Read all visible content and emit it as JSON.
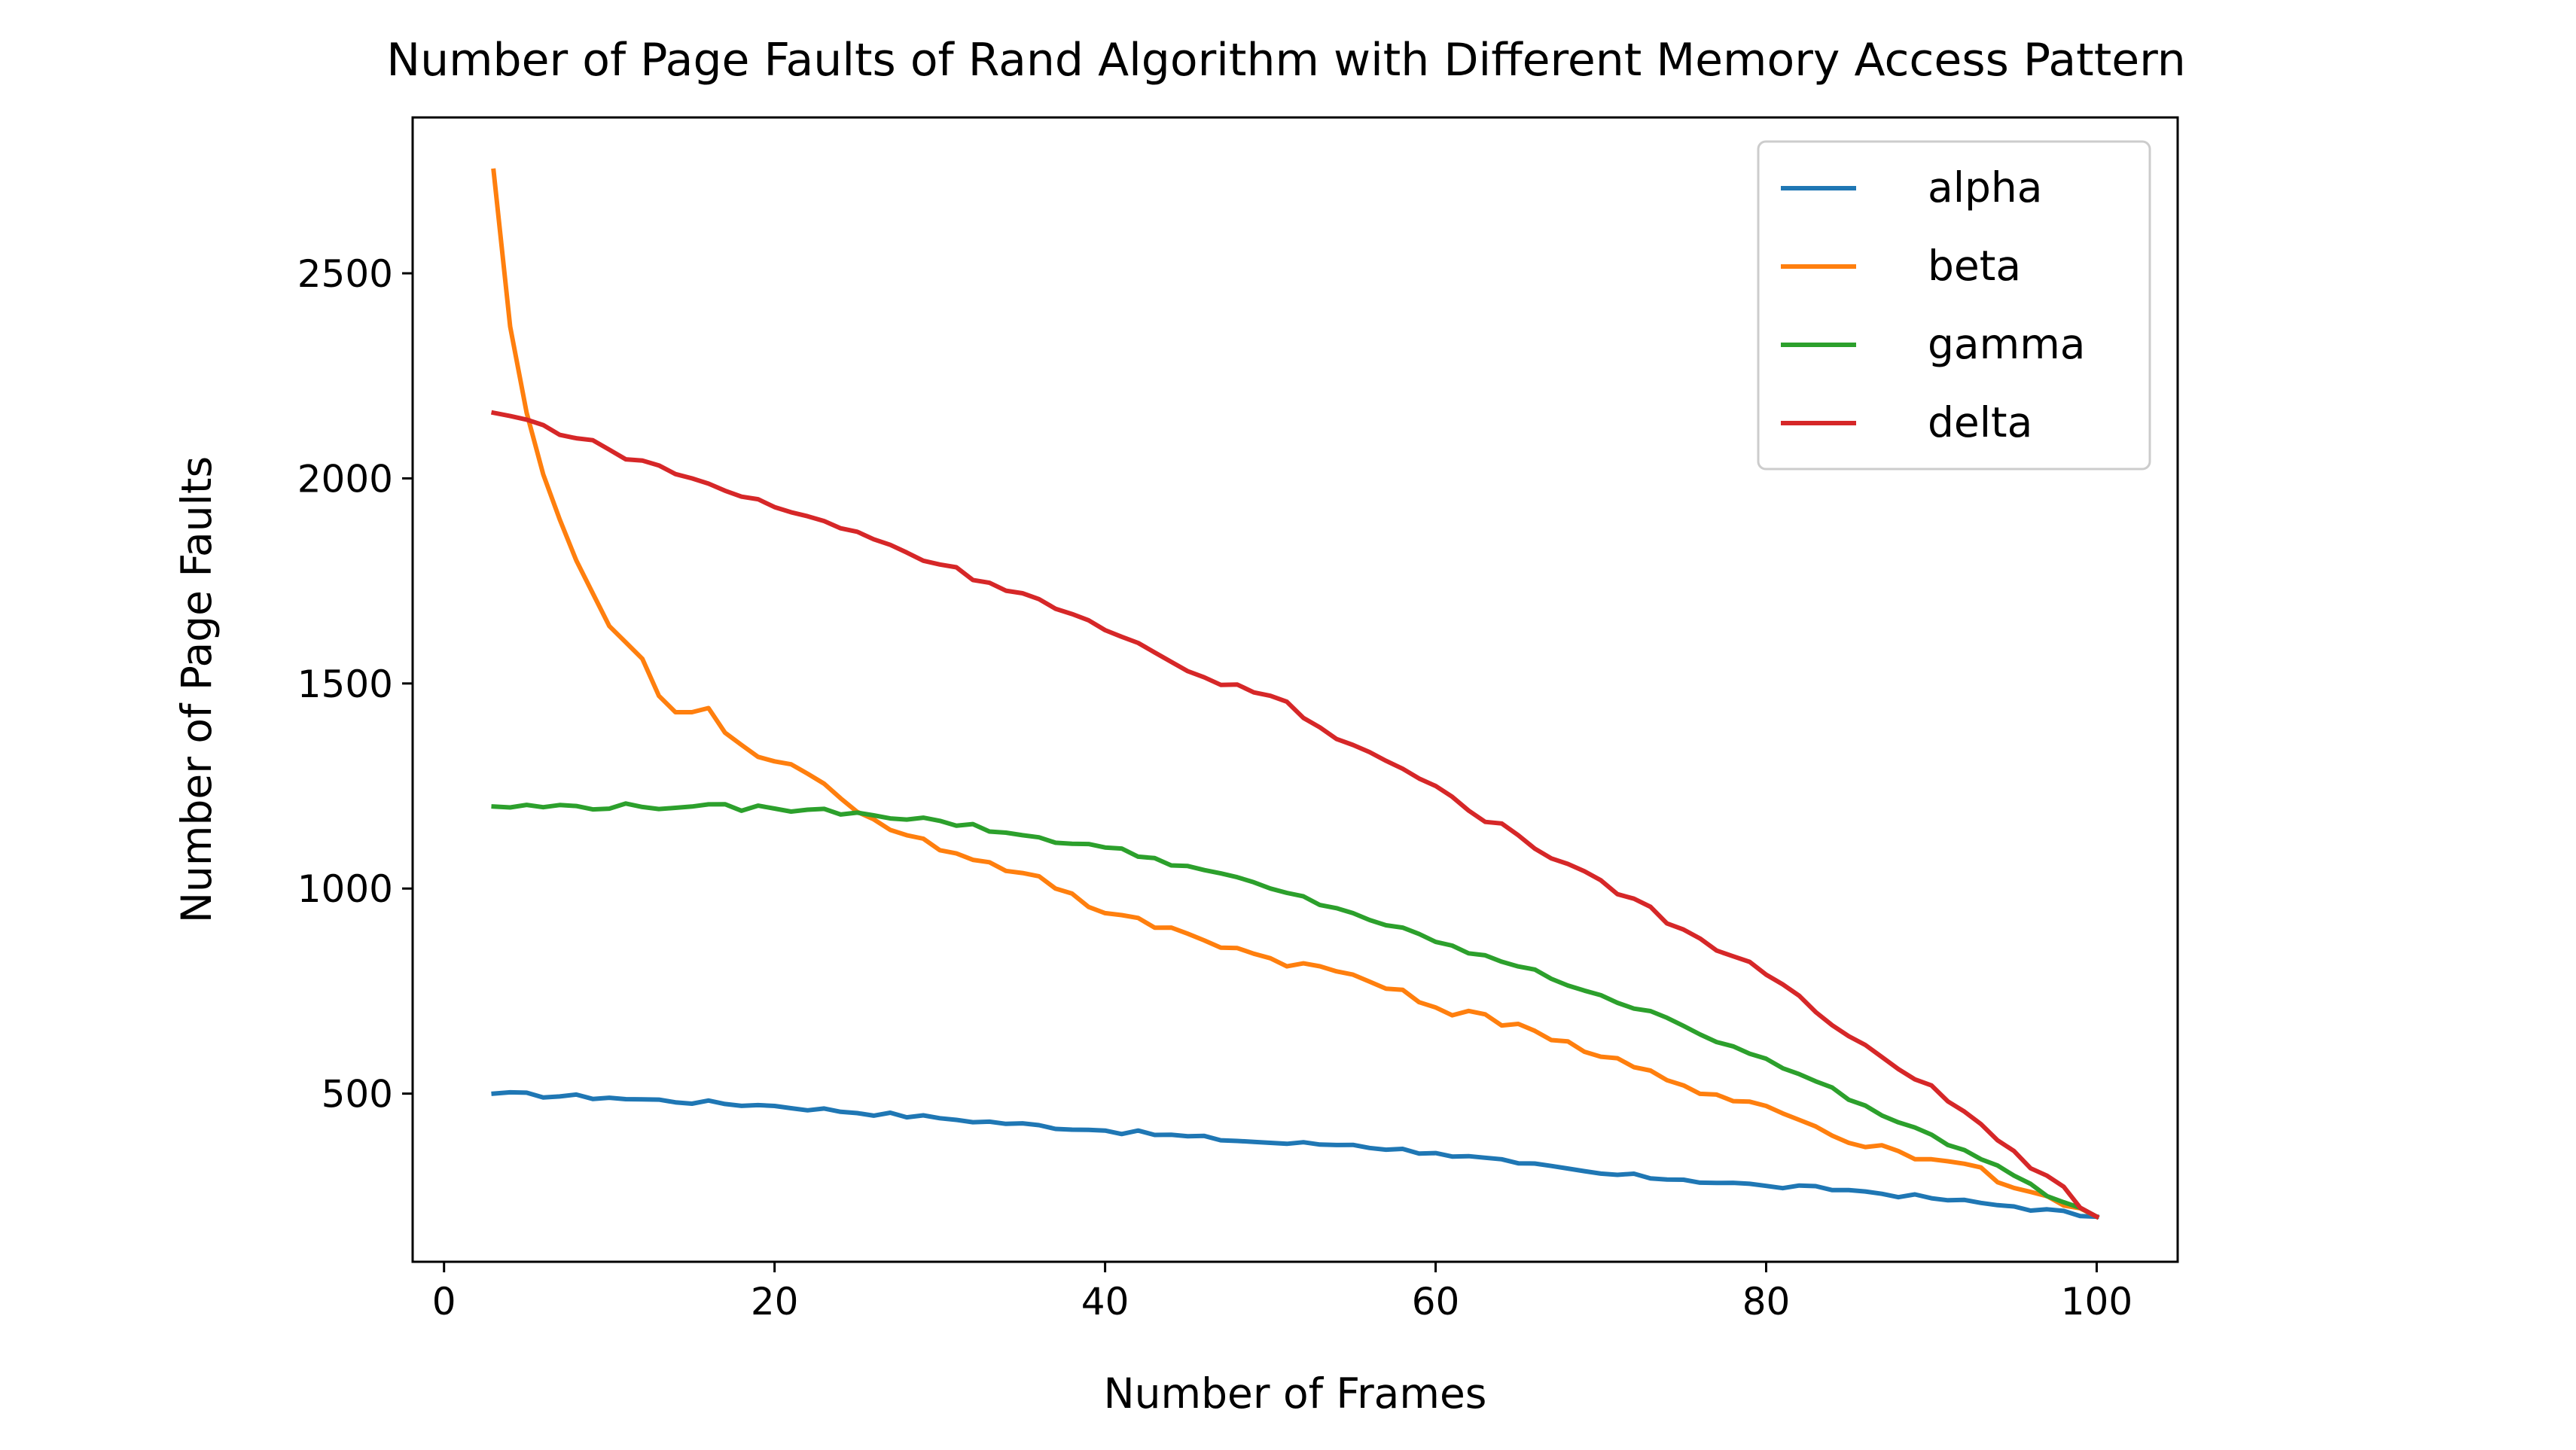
{
  "chart_data": {
    "type": "line",
    "title": "Number of Page Faults of Rand Algorithm with Different Memory Access Pattern",
    "xlabel": "Number of Frames",
    "ylabel": "Number of Page Faults",
    "xlim": [
      -1.9,
      104.9
    ],
    "ylim": [
      90,
      2880
    ],
    "xticks": [
      0,
      20,
      40,
      60,
      80,
      100
    ],
    "yticks": [
      500,
      1000,
      1500,
      2000,
      2500
    ],
    "legend_position": "top-right",
    "x_start": 3,
    "x_step": 1,
    "series": [
      {
        "name": "alpha",
        "color": "#1f77b4",
        "keypoints": [
          [
            3,
            500
          ],
          [
            10,
            490
          ],
          [
            20,
            470
          ],
          [
            30,
            440
          ],
          [
            40,
            410
          ],
          [
            50,
            380
          ],
          [
            55,
            375
          ],
          [
            60,
            355
          ],
          [
            65,
            330
          ],
          [
            70,
            305
          ],
          [
            75,
            290
          ],
          [
            80,
            275
          ],
          [
            85,
            265
          ],
          [
            90,
            245
          ],
          [
            95,
            225
          ],
          [
            100,
            200
          ]
        ],
        "noise": 6
      },
      {
        "name": "beta",
        "color": "#ff7f0e",
        "keypoints": [
          [
            3,
            2750
          ],
          [
            4,
            2370
          ],
          [
            5,
            2160
          ],
          [
            6,
            2010
          ],
          [
            7,
            1900
          ],
          [
            8,
            1800
          ],
          [
            9,
            1720
          ],
          [
            10,
            1640
          ],
          [
            11,
            1600
          ],
          [
            12,
            1560
          ],
          [
            13,
            1470
          ],
          [
            14,
            1430
          ],
          [
            15,
            1430
          ],
          [
            16,
            1440
          ],
          [
            17,
            1380
          ],
          [
            18,
            1350
          ],
          [
            20,
            1310
          ],
          [
            22,
            1280
          ],
          [
            24,
            1220
          ],
          [
            28,
            1130
          ],
          [
            32,
            1070
          ],
          [
            36,
            1030
          ],
          [
            40,
            940
          ],
          [
            45,
            890
          ],
          [
            50,
            830
          ],
          [
            55,
            790
          ],
          [
            60,
            710
          ],
          [
            65,
            670
          ],
          [
            70,
            590
          ],
          [
            75,
            520
          ],
          [
            80,
            470
          ],
          [
            83,
            420
          ],
          [
            85,
            380
          ],
          [
            88,
            360
          ],
          [
            90,
            340
          ],
          [
            93,
            320
          ],
          [
            95,
            270
          ],
          [
            97,
            250
          ],
          [
            100,
            200
          ]
        ],
        "noise": 12
      },
      {
        "name": "gamma",
        "color": "#2ca02c",
        "keypoints": [
          [
            3,
            1200
          ],
          [
            15,
            1200
          ],
          [
            20,
            1195
          ],
          [
            25,
            1185
          ],
          [
            30,
            1165
          ],
          [
            35,
            1130
          ],
          [
            40,
            1100
          ],
          [
            45,
            1055
          ],
          [
            50,
            1000
          ],
          [
            55,
            940
          ],
          [
            60,
            870
          ],
          [
            65,
            810
          ],
          [
            70,
            740
          ],
          [
            75,
            665
          ],
          [
            80,
            585
          ],
          [
            83,
            530
          ],
          [
            85,
            485
          ],
          [
            88,
            430
          ],
          [
            90,
            400
          ],
          [
            93,
            340
          ],
          [
            95,
            300
          ],
          [
            97,
            250
          ],
          [
            100,
            200
          ]
        ],
        "noise": 8
      },
      {
        "name": "delta",
        "color": "#d62728",
        "keypoints": [
          [
            3,
            2160
          ],
          [
            6,
            2130
          ],
          [
            10,
            2070
          ],
          [
            15,
            2000
          ],
          [
            20,
            1930
          ],
          [
            25,
            1870
          ],
          [
            30,
            1790
          ],
          [
            35,
            1720
          ],
          [
            40,
            1630
          ],
          [
            45,
            1530
          ],
          [
            50,
            1470
          ],
          [
            55,
            1350
          ],
          [
            60,
            1250
          ],
          [
            62,
            1190
          ],
          [
            65,
            1130
          ],
          [
            68,
            1060
          ],
          [
            70,
            1020
          ],
          [
            75,
            900
          ],
          [
            80,
            790
          ],
          [
            85,
            640
          ],
          [
            90,
            520
          ],
          [
            95,
            360
          ],
          [
            100,
            200
          ]
        ],
        "noise": 10
      }
    ]
  }
}
